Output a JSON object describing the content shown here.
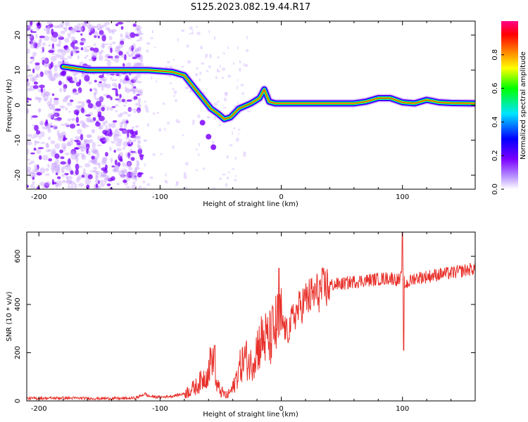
{
  "title": "S125.2023.082.19.44.R17",
  "chart_data": [
    {
      "type": "heatmap",
      "xlabel": "Height of straight line (km)",
      "ylabel": "Frequency (Hz)",
      "xlim": [
        -210,
        160
      ],
      "ylim": [
        -24,
        24
      ],
      "x_ticks": [
        -200,
        -100,
        0,
        100
      ],
      "y_ticks": [
        20,
        10,
        0,
        -10,
        -20
      ],
      "colorbar": {
        "label": "Normalized spectral amplitude",
        "range": [
          0,
          1
        ],
        "ticks": [
          0.0,
          0.2,
          0.4,
          0.6,
          0.8
        ],
        "colormap": [
          "#ffffff",
          "#7b00ff",
          "#0000ff",
          "#00ffff",
          "#00ff00",
          "#ffff00",
          "#ff8000",
          "#ff0000",
          "#ff0088"
        ]
      },
      "ridge": {
        "x": [
          -180,
          -160,
          -140,
          -130,
          -110,
          -90,
          -80,
          -72,
          -65,
          -58,
          -52,
          -47,
          -42,
          -35,
          -25,
          -18,
          -14,
          -10,
          -5,
          0,
          20,
          40,
          60,
          70,
          80,
          90,
          100,
          110,
          120,
          130,
          140,
          160
        ],
        "y": [
          11,
          10,
          10,
          10,
          10,
          9.5,
          8.5,
          5,
          2,
          -1,
          -2.5,
          -4,
          -3.5,
          -1,
          0.5,
          2,
          4.5,
          1,
          0.5,
          0.5,
          0.5,
          0.5,
          0.5,
          1,
          2,
          2,
          0.8,
          0.5,
          1.5,
          0.8,
          0.6,
          0.5
        ]
      }
    },
    {
      "type": "line",
      "xlabel": "Height of straight line (km)",
      "ylabel": "SNR (10 * v/v)",
      "xlim": [
        -210,
        160
      ],
      "ylim": [
        0,
        700
      ],
      "x_ticks": [
        -200,
        -100,
        0,
        100
      ],
      "y_ticks": [
        0,
        200,
        400,
        600
      ],
      "color": "#e8302a",
      "series": [
        {
          "x": [
            -210,
            -180,
            -150,
            -130,
            -120,
            -112,
            -110,
            -100,
            -90,
            -80,
            -70,
            -65,
            -60,
            -57,
            -55,
            -50,
            -45,
            -40,
            -35,
            -30,
            -25,
            -20,
            -15,
            -10,
            -5,
            0,
            5,
            10,
            20,
            30,
            40,
            50,
            60,
            70,
            80,
            90,
            98,
            100,
            102,
            110,
            120,
            130,
            140,
            150,
            160
          ],
          "y": [
            10,
            12,
            10,
            10,
            12,
            30,
            20,
            15,
            20,
            30,
            60,
            90,
            120,
            200,
            80,
            40,
            20,
            50,
            130,
            180,
            150,
            220,
            260,
            250,
            300,
            330,
            280,
            350,
            420,
            450,
            480,
            485,
            495,
            500,
            505,
            510,
            500,
            530,
            480,
            510,
            515,
            525,
            530,
            540,
            550
          ]
        }
      ],
      "spikes": [
        {
          "x": -55,
          "y": 230
        },
        {
          "x": -2,
          "y": 550
        },
        {
          "x": 100,
          "y": 700
        },
        {
          "x": 101,
          "y": 210
        }
      ]
    }
  ]
}
